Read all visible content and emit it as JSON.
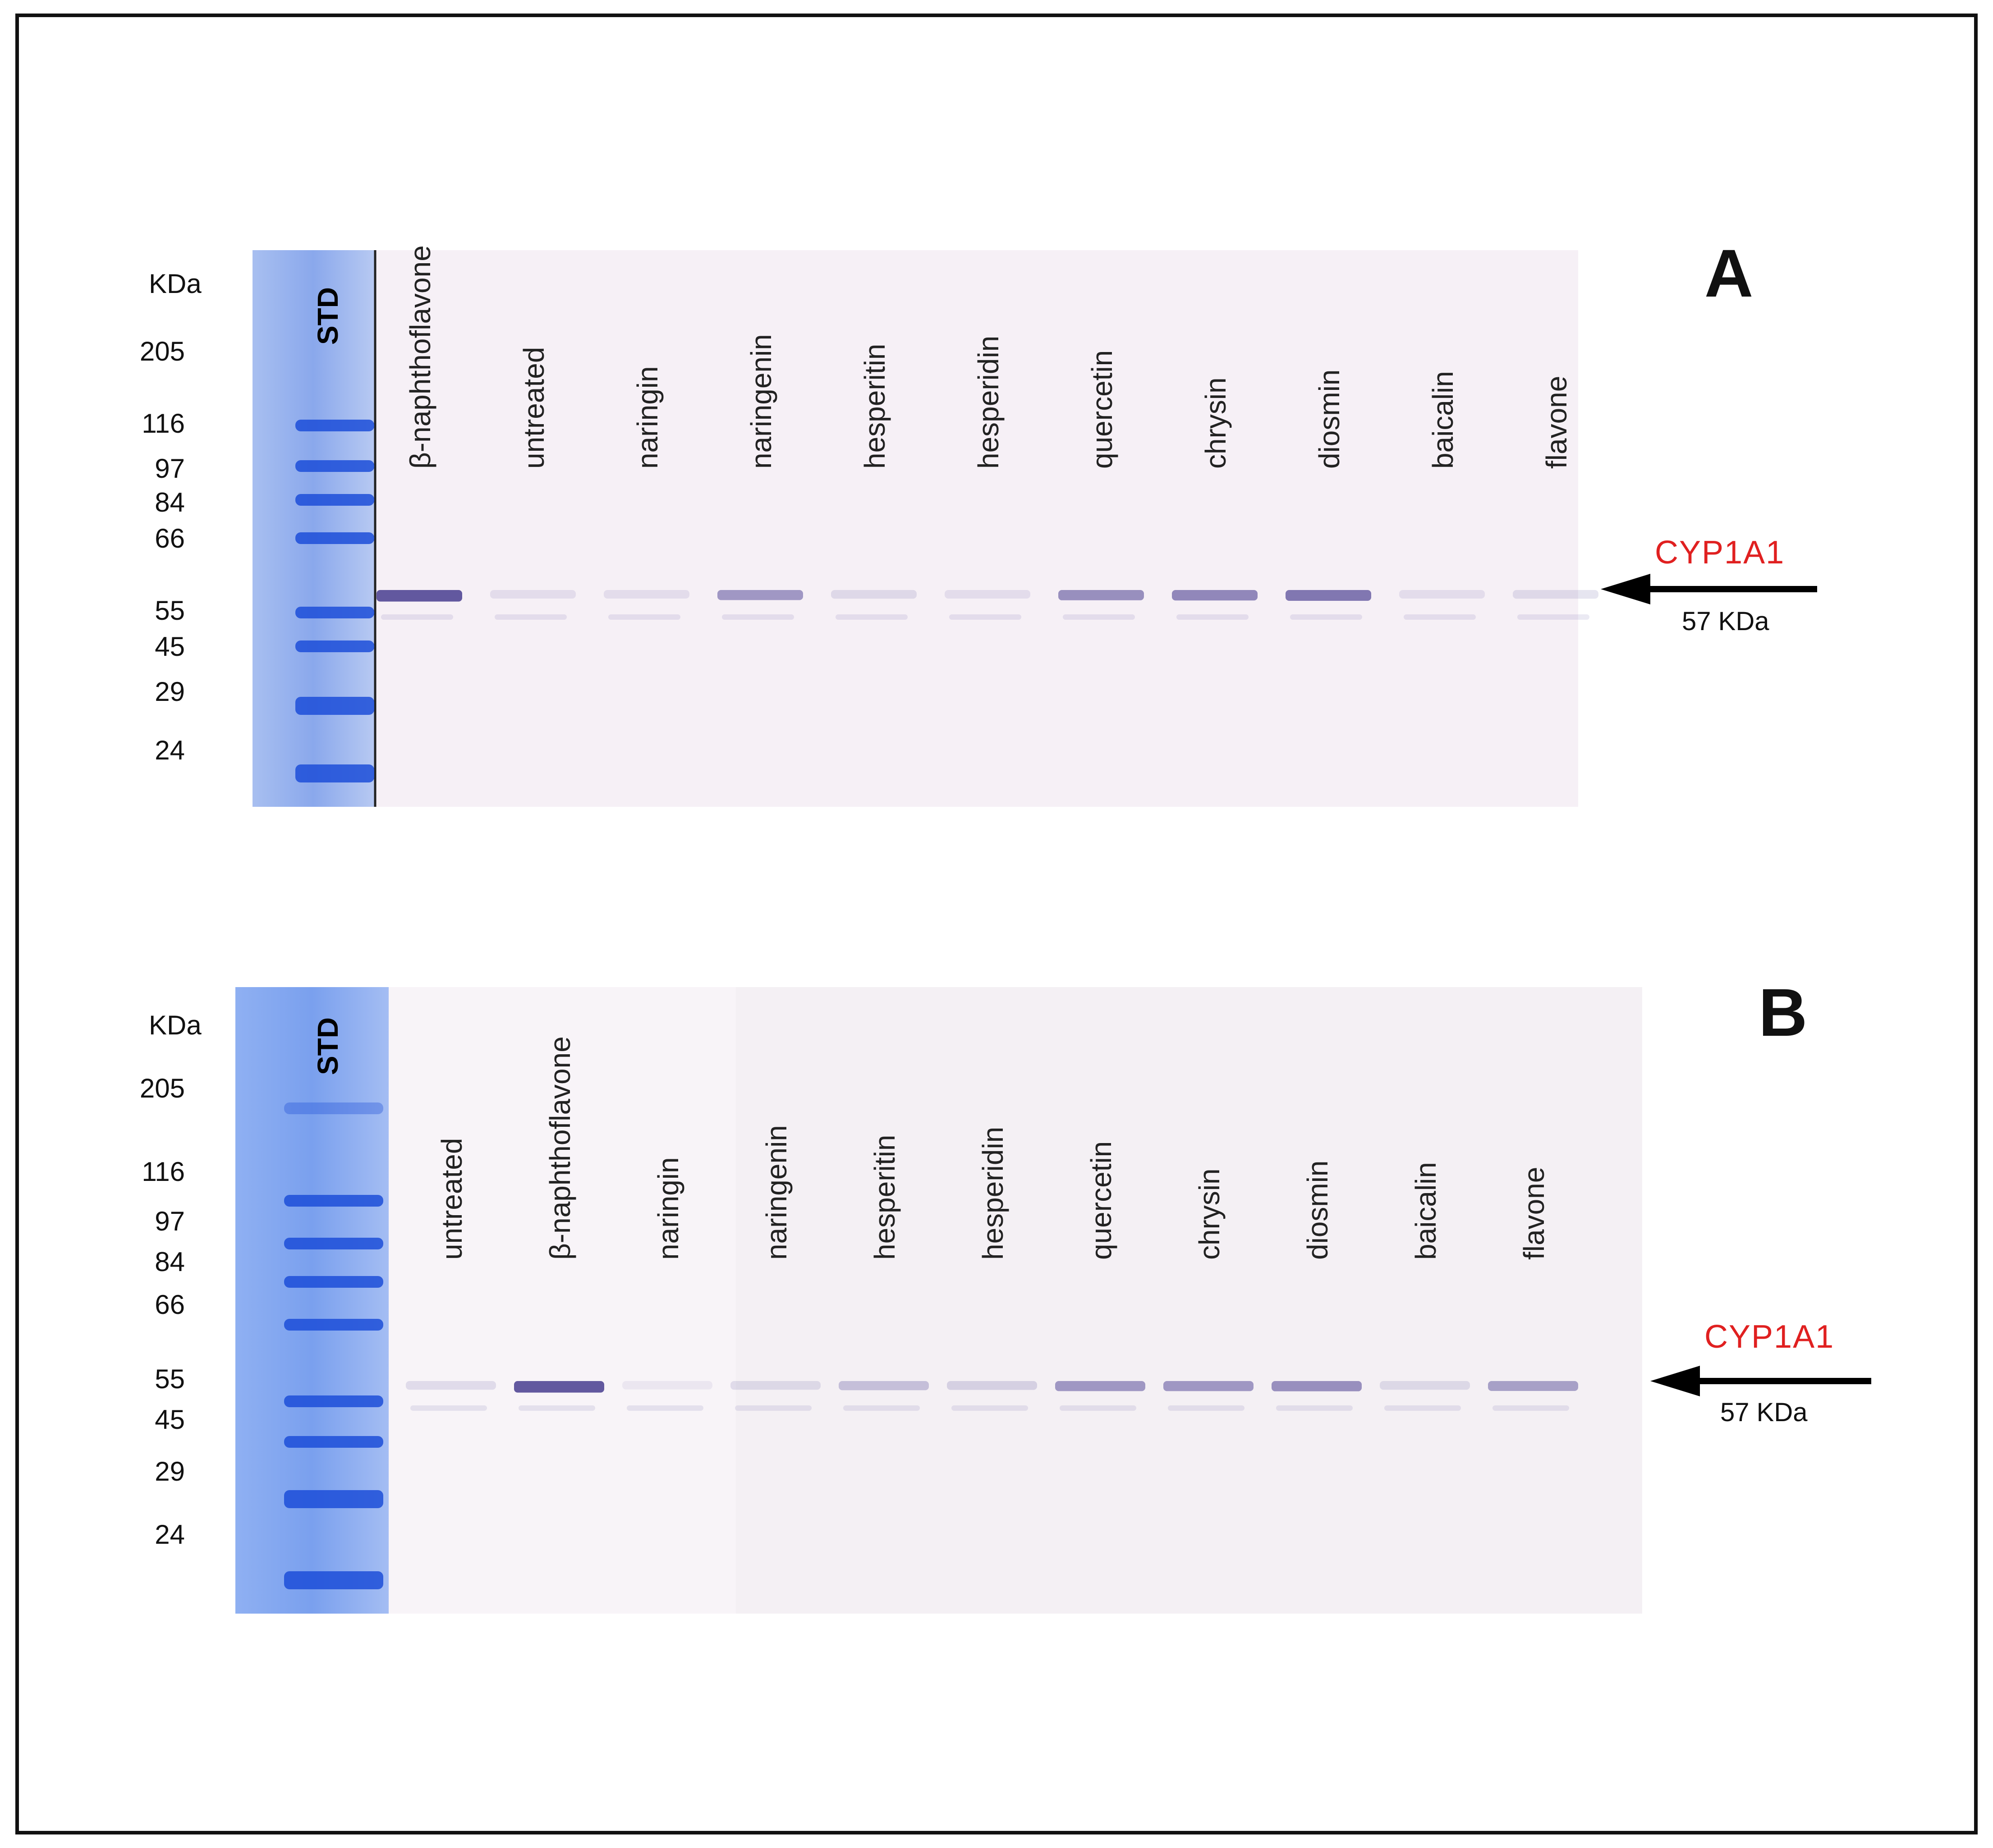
{
  "panels": [
    {
      "letter": "A",
      "kda_title": "KDa",
      "std_label": "STD",
      "mw_markers": [
        "205",
        "116",
        "97",
        "84",
        "66",
        "55",
        "45",
        "29",
        "24"
      ],
      "lanes": [
        "β-naphthoflavone",
        "untreated",
        "naringin",
        "naringenin",
        "hesperitin",
        "hesperidin",
        "quercetin",
        "chrysin",
        "diosmin",
        "baicalin",
        "flavone"
      ],
      "band_intensity": [
        0.95,
        0.12,
        0.12,
        0.55,
        0.15,
        0.12,
        0.6,
        0.65,
        0.75,
        0.12,
        0.15
      ],
      "target_label": "CYP1A1",
      "target_size": "57 KDa"
    },
    {
      "letter": "B",
      "kda_title": "KDa",
      "std_label": "STD",
      "mw_markers": [
        "205",
        "116",
        "97",
        "84",
        "66",
        "55",
        "45",
        "29",
        "24"
      ],
      "lanes": [
        "untreated",
        "β-naphthoflavone",
        "naringin",
        "naringenin",
        "hesperitin",
        "hesperidin",
        "quercetin",
        "chrysin",
        "diosmin",
        "baicalin",
        "flavone"
      ],
      "band_intensity": [
        0.15,
        0.95,
        0.08,
        0.15,
        0.3,
        0.2,
        0.55,
        0.55,
        0.6,
        0.15,
        0.5
      ],
      "target_label": "CYP1A1",
      "target_size": "57 KDa"
    }
  ],
  "colors": {
    "ladder_bg": "#7fa0e6",
    "ladder_band": "#1c4ed8",
    "membrane": "#f4eef4",
    "band": "#5a4f9a",
    "cyp_text": "#e02020"
  }
}
